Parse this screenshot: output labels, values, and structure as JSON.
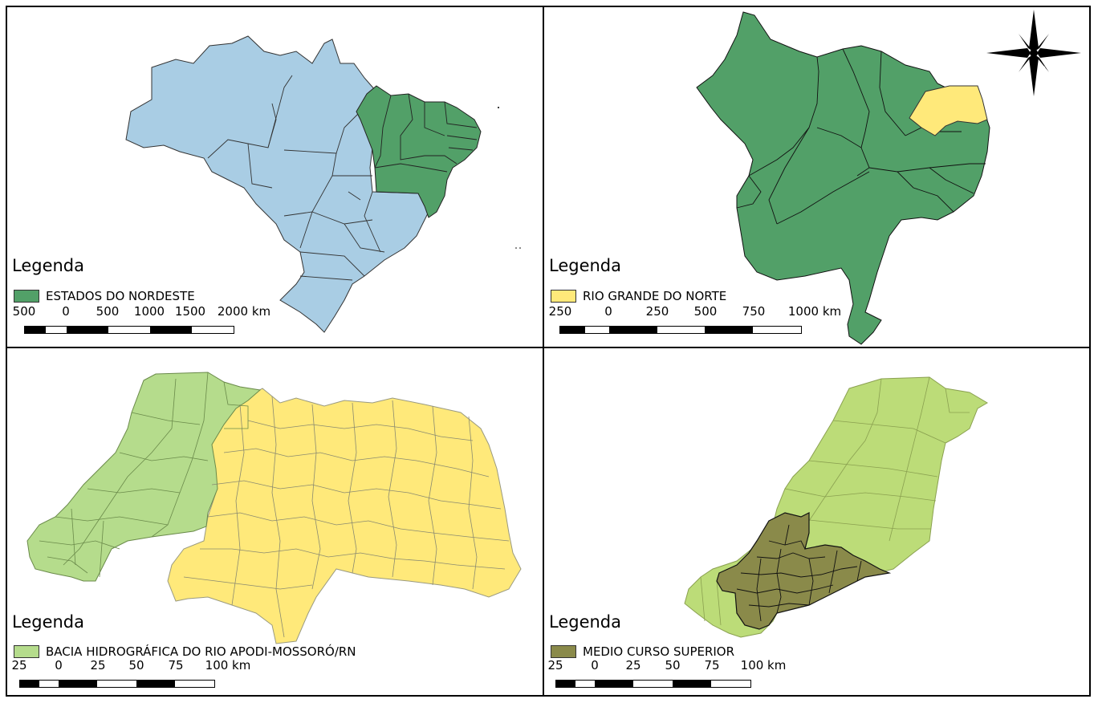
{
  "panels": [
    {
      "legend_title": "Legenda",
      "legend_label": "ESTADOS DO NORDESTE",
      "legend_color": "#52a068",
      "scale_labels": [
        "500",
        "0",
        "500",
        "1000",
        "1500",
        "2000 km"
      ]
    },
    {
      "legend_title": "Legenda",
      "legend_label": "RIO GRANDE DO NORTE",
      "legend_color": "#ffe97a",
      "scale_labels": [
        "250",
        "0",
        "250",
        "500",
        "750",
        "1000 km"
      ]
    },
    {
      "legend_title": "Legenda",
      "legend_label": "BACIA HIDROGRÁFICA DO RIO APODI-MOSSORÓ/RN",
      "legend_color": "#b5dc8c",
      "scale_labels": [
        "25",
        "0",
        "25",
        "50",
        "75",
        "100 km"
      ]
    },
    {
      "legend_title": "Legenda",
      "legend_label": "MEDIO CURSO SUPERIOR",
      "legend_color": "#8a8a4a",
      "scale_labels": [
        "25",
        "0",
        "25",
        "50",
        "75",
        "100 km"
      ]
    }
  ],
  "colors": {
    "brazil": "#a9cde4",
    "nordeste": "#52a068",
    "rn": "#ffe97a",
    "bacia": "#b5dc8c",
    "bacia_right": "#bcdc78",
    "medio": "#8a8a4a"
  },
  "north_arrow": "north-arrow-icon"
}
